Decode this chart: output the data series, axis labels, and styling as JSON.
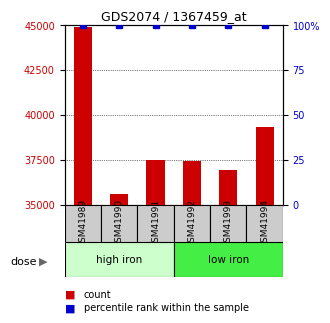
{
  "title": "GDS2074 / 1367459_at",
  "categories": [
    "GSM41989",
    "GSM41990",
    "GSM41991",
    "GSM41992",
    "GSM41993",
    "GSM41994"
  ],
  "counts": [
    44900,
    35600,
    37500,
    37450,
    36950,
    39300
  ],
  "percentiles": [
    100,
    100,
    100,
    100,
    100,
    100
  ],
  "ylim_left": [
    35000,
    45000
  ],
  "ylim_right": [
    0,
    100
  ],
  "yticks_left": [
    35000,
    37500,
    40000,
    42500,
    45000
  ],
  "yticks_right": [
    0,
    25,
    50,
    75,
    100
  ],
  "bar_color": "#cc0000",
  "dot_color": "#0000cc",
  "bar_baseline": 35000,
  "groups": [
    {
      "label": "high iron",
      "indices": [
        0,
        1,
        2
      ],
      "color": "#ccffcc"
    },
    {
      "label": "low iron",
      "indices": [
        3,
        4,
        5
      ],
      "color": "#44ee44"
    }
  ],
  "xlabel_dose": "dose",
  "legend_count": "count",
  "legend_percentile": "percentile rank within the sample",
  "grid_color": "black",
  "tick_label_color_left": "#cc0000",
  "tick_label_color_right": "#0000cc",
  "sample_box_color": "#cccccc",
  "background_color": "#ffffff"
}
